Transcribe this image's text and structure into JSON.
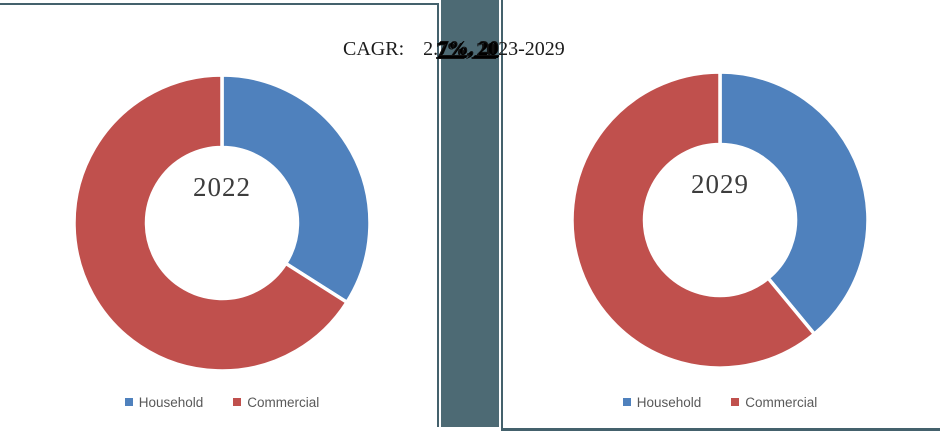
{
  "figure": {
    "title": {
      "label": "CAGR:",
      "value_prefix": "2.",
      "value_overlap": "7%, 20",
      "value_suffix": "23-2029",
      "full_text": "CAGR: 2.7%, 2023-2029"
    },
    "divider_bar_color": "#4D6A74",
    "border_line_color": "#44616C",
    "legend_text_color": "#595959"
  },
  "chart_data": [
    {
      "type": "pie",
      "subtype": "donut",
      "center_label": "2022",
      "categories": [
        "Household",
        "Commercial"
      ],
      "values": [
        34,
        66
      ],
      "colors": [
        "#4F81BD",
        "#C0504D"
      ],
      "start_angle_deg": 0,
      "direction": "clockwise",
      "hole_ratio": 0.51,
      "legend_position": "bottom",
      "data_labels_shown": false
    },
    {
      "type": "pie",
      "subtype": "donut",
      "center_label": "2029",
      "categories": [
        "Household",
        "Commercial"
      ],
      "values": [
        39,
        61
      ],
      "colors": [
        "#4F81BD",
        "#C0504D"
      ],
      "start_angle_deg": 0,
      "direction": "clockwise",
      "hole_ratio": 0.51,
      "legend_position": "bottom",
      "data_labels_shown": false
    }
  ]
}
